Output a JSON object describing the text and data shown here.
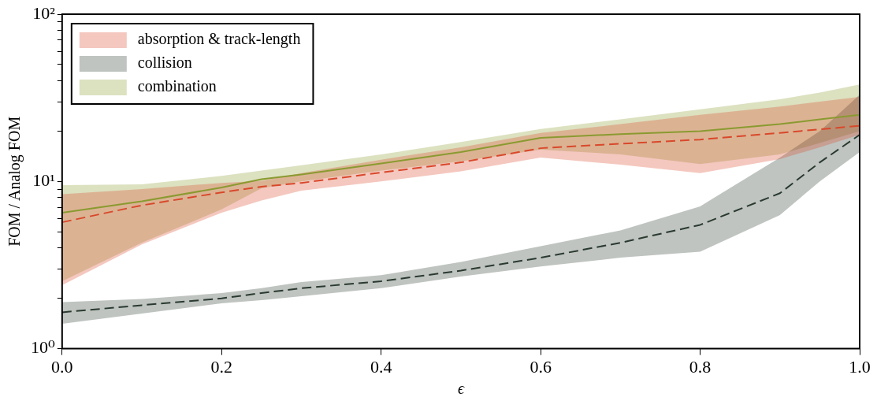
{
  "chart_data": {
    "type": "line",
    "xlabel": "ϵ",
    "ylabel": "FOM / Analog FOM",
    "log": "y",
    "grid": false,
    "legend": "top left",
    "marker": "none",
    "xlim": [
      0,
      1
    ],
    "xticks": [
      {
        "value": 0,
        "label": "0.0"
      },
      {
        "value": 0.2,
        "label": "0.2"
      },
      {
        "value": 0.4,
        "label": "0.4"
      },
      {
        "value": 0.6,
        "label": "0.6"
      },
      {
        "value": 0.8,
        "label": "0.8"
      },
      {
        "value": 1,
        "label": "1.0"
      }
    ],
    "ylim": [
      1,
      100
    ],
    "yticks": [
      {
        "value": 1,
        "label": "10⁰"
      },
      {
        "value": 2,
        "label": null
      },
      {
        "value": 3,
        "label": null
      },
      {
        "value": 4,
        "label": null
      },
      {
        "value": 5,
        "label": null
      },
      {
        "value": 6,
        "label": null
      },
      {
        "value": 7,
        "label": null
      },
      {
        "value": 8,
        "label": null
      },
      {
        "value": 9,
        "label": null
      },
      {
        "value": 10,
        "label": "10¹"
      },
      {
        "value": 20,
        "label": null
      },
      {
        "value": 30,
        "label": null
      },
      {
        "value": 40,
        "label": null
      },
      {
        "value": 50,
        "label": null
      },
      {
        "value": 60,
        "label": null
      },
      {
        "value": 70,
        "label": null
      },
      {
        "value": 80,
        "label": null
      },
      {
        "value": 90,
        "label": null
      },
      {
        "value": 100,
        "label": "10²"
      }
    ],
    "x": [
      0,
      0.1,
      0.2,
      0.25,
      0.3,
      0.4,
      0.5,
      0.6,
      0.7,
      0.8,
      0.9,
      0.95,
      1
    ],
    "series": [
      {
        "name": "absorption & track-length",
        "color": "#d9482b",
        "line_style": "dashed",
        "values": [
          5.7,
          7.2,
          8.6,
          9.3,
          9.8,
          11.3,
          13,
          15.8,
          16.8,
          17.8,
          19.5,
          20.5,
          21.5
        ],
        "lower": [
          2.4,
          4.2,
          6.5,
          7.7,
          8.8,
          10,
          11.5,
          13.9,
          12.6,
          11.2,
          13.6,
          16,
          19
        ],
        "upper": [
          8.4,
          9,
          9.8,
          10.1,
          11.2,
          13.5,
          16,
          19.5,
          22,
          25,
          28,
          30,
          32
        ]
      },
      {
        "name": "collision",
        "color": "#2a3a30",
        "line_style": "dashed",
        "values": [
          1.65,
          1.82,
          2,
          2.15,
          2.3,
          2.53,
          2.93,
          3.5,
          4.3,
          5.5,
          8.5,
          13,
          19
        ],
        "lower": [
          1.41,
          1.62,
          1.87,
          1.95,
          2.06,
          2.3,
          2.7,
          3.1,
          3.5,
          3.8,
          6.3,
          10,
          15
        ],
        "upper": [
          1.9,
          1.98,
          2.15,
          2.3,
          2.5,
          2.75,
          3.3,
          4.1,
          5.1,
          7.1,
          13.9,
          20,
          33
        ]
      },
      {
        "name": "combination",
        "color": "#8a9a30",
        "line_style": "solid",
        "values": [
          6.5,
          7.6,
          9.2,
          10.3,
          11,
          12.8,
          15,
          18.2,
          19.2,
          20,
          22,
          23.5,
          25
        ],
        "lower": [
          2.53,
          4.3,
          6.8,
          9.1,
          10,
          11.6,
          13.2,
          15.5,
          14.5,
          12.7,
          14.5,
          17,
          20
        ],
        "upper": [
          9.5,
          9.6,
          10.8,
          11.6,
          12.5,
          14.5,
          17.2,
          20.6,
          23.5,
          27,
          31,
          34,
          38
        ]
      }
    ]
  }
}
